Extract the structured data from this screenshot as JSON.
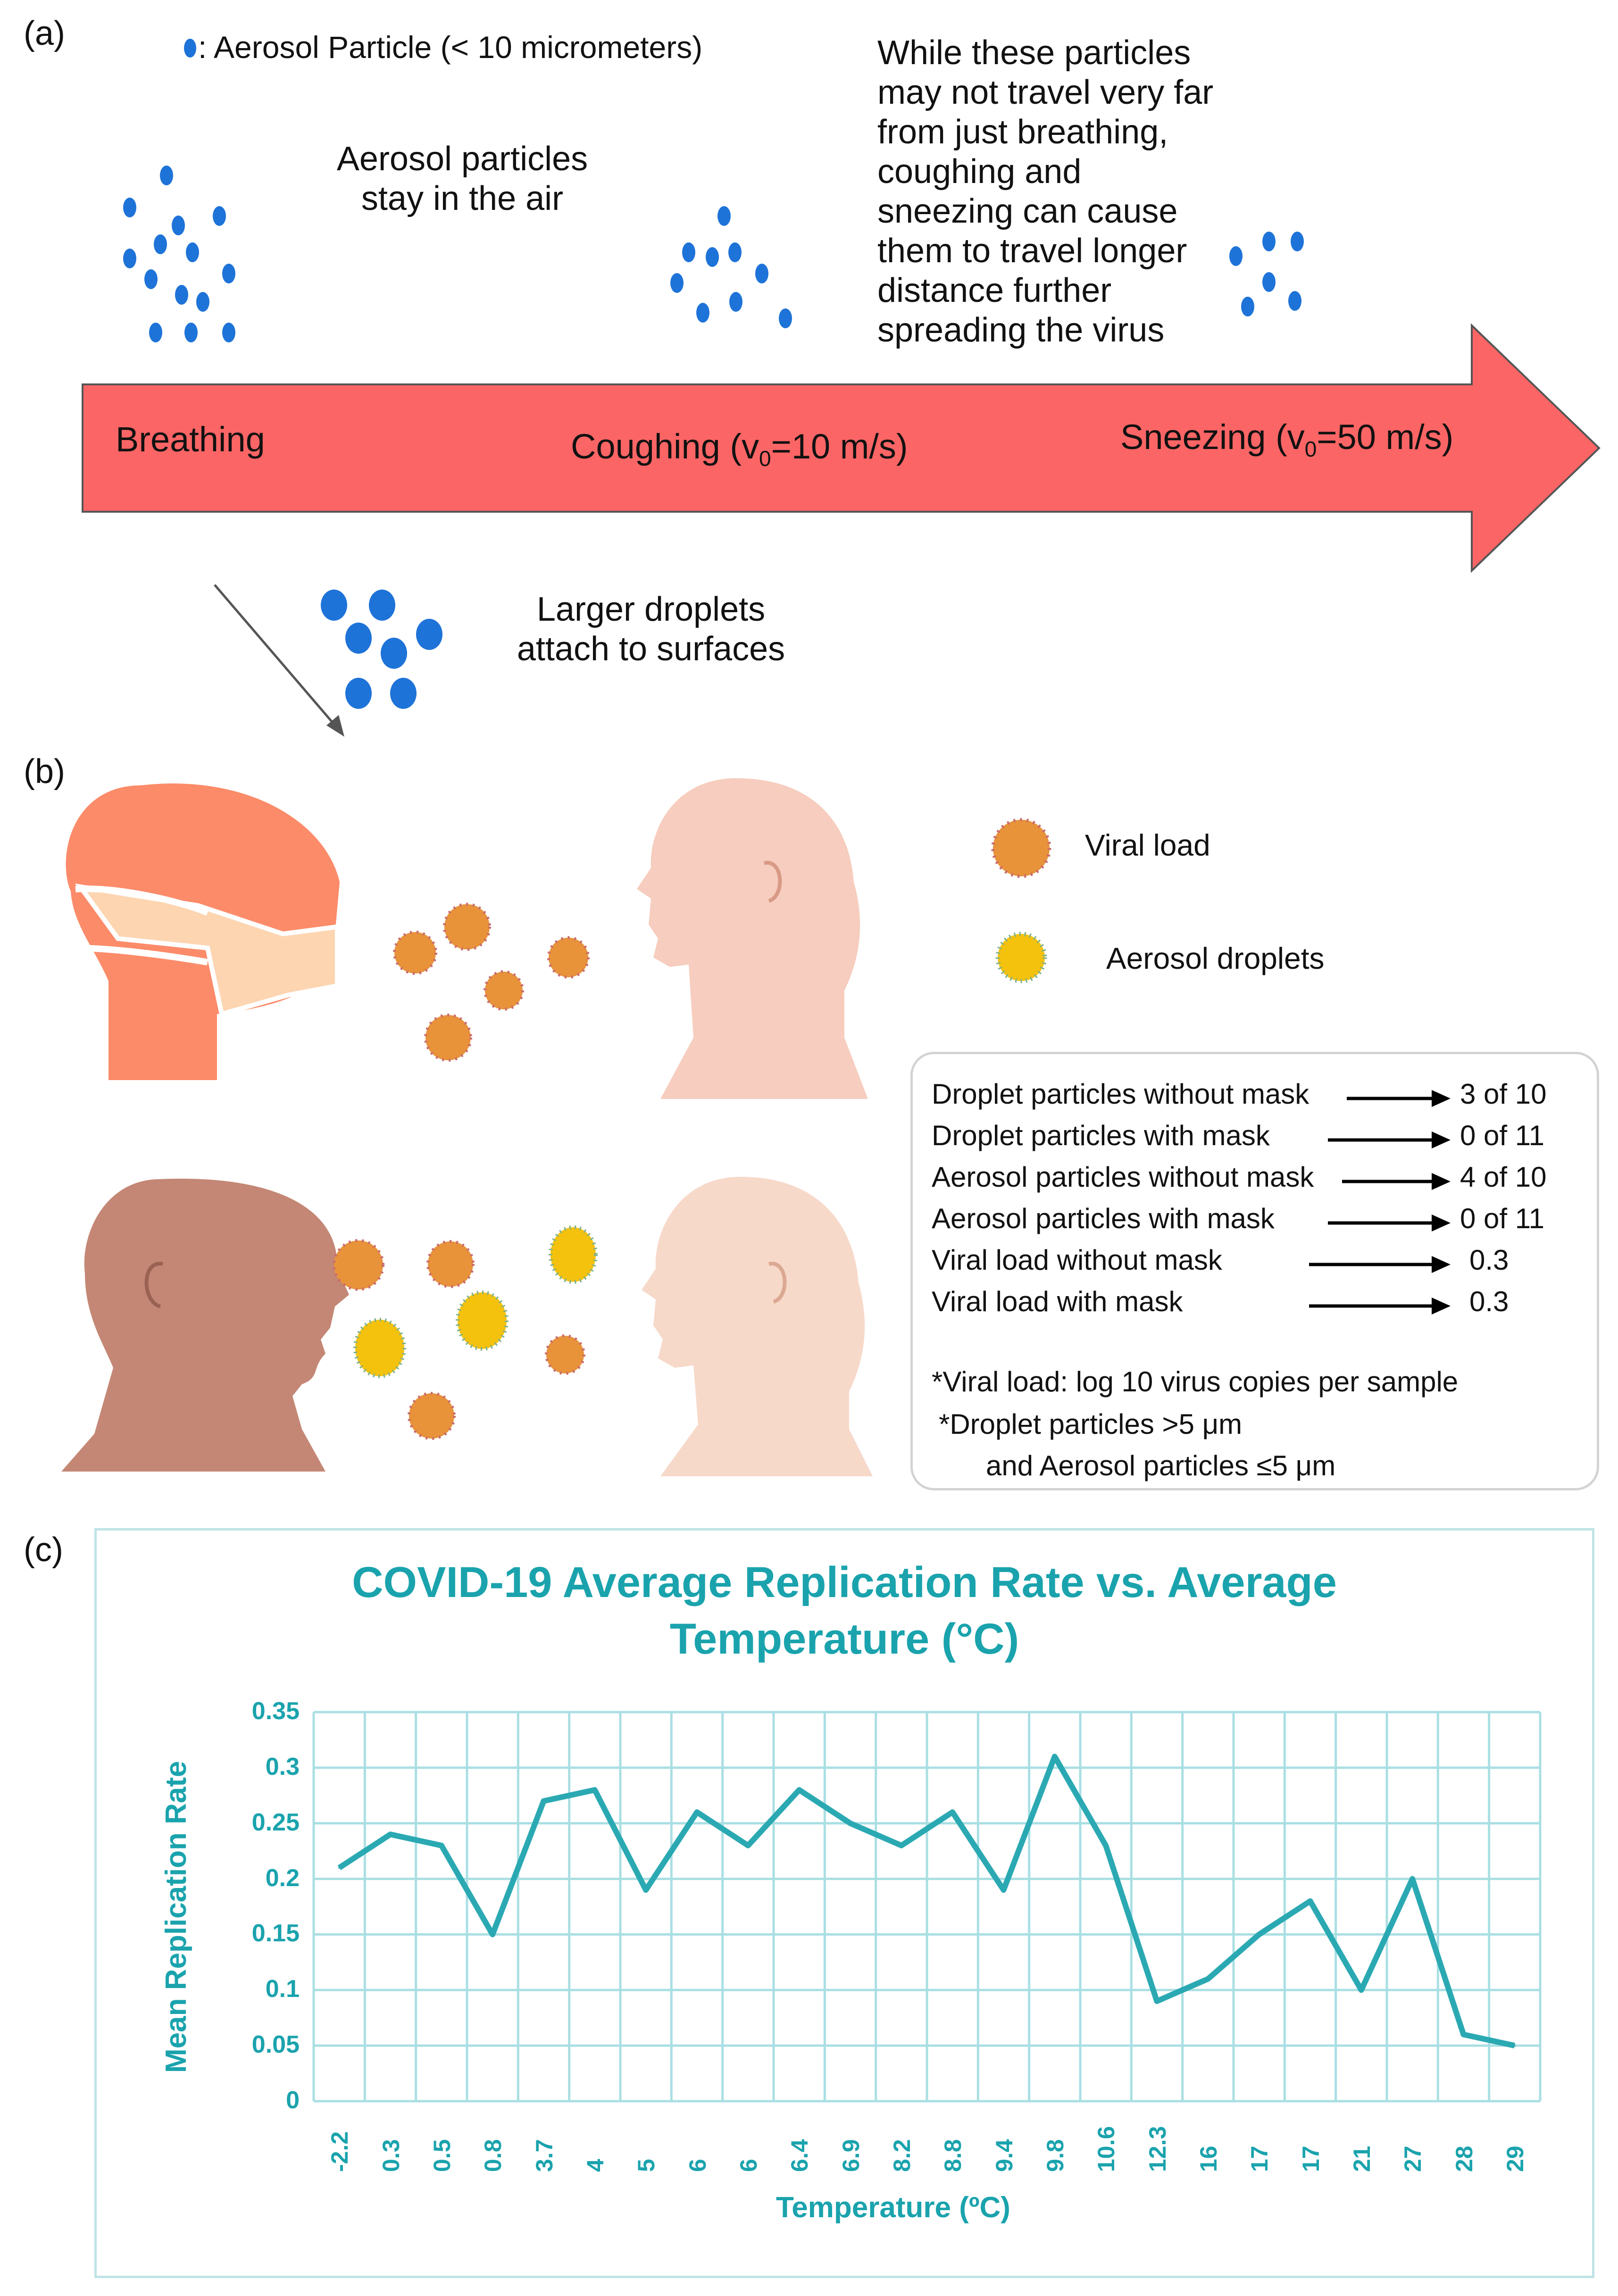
{
  "panel_labels": {
    "a": "(a)",
    "b": "(b)",
    "c": "(c)"
  },
  "panel_a": {
    "legend_text": ": Aerosol Particle (< 10 micrometers)",
    "aerosol_note_line1": "Aerosol particles",
    "aerosol_note_line2": "stay in the air",
    "travel_note_lines": [
      "While these particles",
      "may not travel very far",
      "from just breathing,",
      "coughing and",
      "sneezing can cause",
      "them to travel longer",
      "distance further",
      "spreading the virus"
    ],
    "stage_breathing": "Breathing",
    "stage_coughing_prefix": "Coughing (v",
    "stage_coughing_sub": "0",
    "stage_coughing_suffix": "=10 m/s)",
    "stage_sneezing_prefix": "Sneezing (v",
    "stage_sneezing_sub": "0",
    "stage_sneezing_suffix": "=50 m/s)",
    "droplet_note_line1": "Larger droplets",
    "droplet_note_line2": "attach to surfaces",
    "colors": {
      "arrow": "#fc6565",
      "particle": "#1e73d8"
    }
  },
  "panel_b": {
    "legend_viral": "Viral load",
    "legend_aerosol": "Aerosol droplets",
    "results": [
      {
        "label": "Droplet particles without mask",
        "value": "3 of 10"
      },
      {
        "label": "Droplet particles with mask",
        "value": "0 of 11"
      },
      {
        "label": "Aerosol particles without mask",
        "value": "4 of 10"
      },
      {
        "label": "Aerosol particles with mask",
        "value": "0 of 11"
      },
      {
        "label": "Viral load without mask",
        "value": "0.3"
      },
      {
        "label": "Viral load with mask",
        "value": "0.3"
      }
    ],
    "footnote_1": "*Viral load: log 10 virus copies per sample",
    "footnote_2": "*Droplet particles >5 μm",
    "footnote_3": "and  Aerosol particles ≤5 μm",
    "colors": {
      "mask_person": "#fc8b69",
      "mask": "#fdd5b1",
      "virus": "#e8933a",
      "aerosol": "#f4c20d"
    }
  },
  "chart_data": {
    "type": "line",
    "title_line1": "COVID-19 Average Replication Rate vs. Average",
    "title_line2": "Temperature (°C)",
    "xlabel": "Temperature (ºC)",
    "ylabel": "Mean Replication Rate",
    "categories": [
      "-2.2",
      "0.3",
      "0.5",
      "0.8",
      "3.7",
      "4",
      "5",
      "6",
      "6",
      "6.4",
      "6.9",
      "8.2",
      "8.8",
      "9.4",
      "9.8",
      "10.6",
      "12.3",
      "16",
      "17",
      "17",
      "21",
      "27",
      "28",
      "29"
    ],
    "values": [
      0.21,
      0.24,
      0.23,
      0.15,
      0.27,
      0.28,
      0.19,
      0.26,
      0.23,
      0.28,
      0.25,
      0.23,
      0.26,
      0.19,
      0.31,
      0.23,
      0.09,
      0.11,
      0.15,
      0.18,
      0.1,
      0.2,
      0.06,
      0.05
    ],
    "y_ticks": [
      "0",
      "0.05",
      "0.1",
      "0.15",
      "0.2",
      "0.25",
      "0.3",
      "0.35"
    ],
    "ylim": [
      0,
      0.35
    ],
    "grid": true,
    "line_color": "#2ba9b3",
    "grid_color": "#a9dfe3"
  }
}
